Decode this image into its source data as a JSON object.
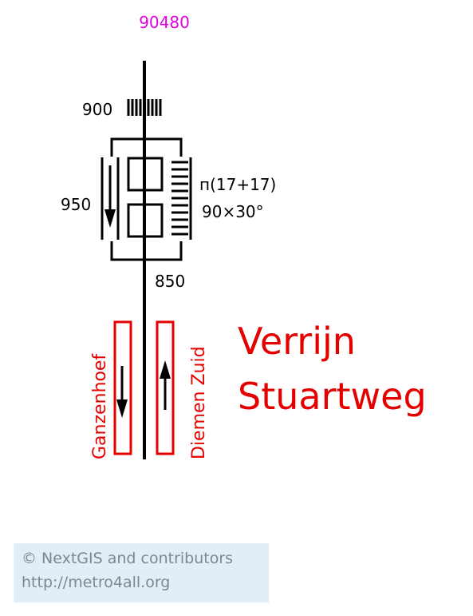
{
  "station_code": "90480",
  "station_code_color": "#e000e0",
  "station_name_line1": "Verrijn",
  "station_name_line2": "Stuartweg",
  "name_color": "#e50000",
  "labels": {
    "width_top": "900",
    "width_side": "950",
    "width_bottom": "850",
    "stairs_steps": "п(17+17)",
    "stairs_angle": "90×30°"
  },
  "platforms": {
    "left_direction": "Ganzenhoef",
    "right_direction": "Diemen Zuid"
  },
  "credit": {
    "line1": "© NextGIS and contributors",
    "line2": "http://metro4all.org"
  }
}
